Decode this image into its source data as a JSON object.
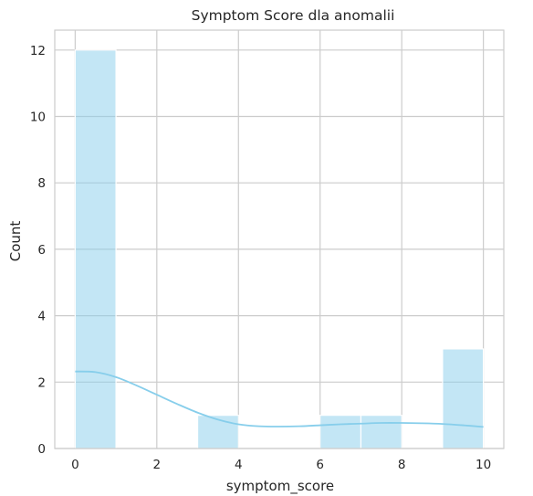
{
  "chart_data": {
    "type": "bar",
    "title": "Symptom Score dla anomalii",
    "xlabel": "symptom_score",
    "ylabel": "Count",
    "xlim": [
      -0.5,
      10.5
    ],
    "ylim": [
      0,
      12.6
    ],
    "xticks": [
      0,
      2,
      4,
      6,
      8,
      10
    ],
    "yticks": [
      0,
      2,
      4,
      6,
      8,
      10,
      12
    ],
    "grid": true,
    "bins": [
      {
        "start": 0,
        "end": 1,
        "count": 12
      },
      {
        "start": 1,
        "end": 2,
        "count": 0
      },
      {
        "start": 2,
        "end": 3,
        "count": 0
      },
      {
        "start": 3,
        "end": 4,
        "count": 1
      },
      {
        "start": 4,
        "end": 5,
        "count": 0
      },
      {
        "start": 5,
        "end": 6,
        "count": 0
      },
      {
        "start": 6,
        "end": 7,
        "count": 1
      },
      {
        "start": 7,
        "end": 8,
        "count": 1
      },
      {
        "start": 8,
        "end": 9,
        "count": 0
      },
      {
        "start": 9,
        "end": 10,
        "count": 3
      }
    ],
    "kde": {
      "x": [
        0,
        0.5,
        1,
        1.5,
        2,
        2.5,
        3,
        3.5,
        4,
        4.5,
        5,
        5.5,
        6,
        6.5,
        7,
        7.5,
        8,
        8.5,
        9,
        9.5,
        10
      ],
      "y": [
        2.32,
        2.3,
        2.15,
        1.9,
        1.62,
        1.34,
        1.08,
        0.87,
        0.73,
        0.67,
        0.66,
        0.67,
        0.7,
        0.73,
        0.75,
        0.77,
        0.77,
        0.76,
        0.74,
        0.7,
        0.65
      ]
    },
    "colors": {
      "bar_fill": "#87ceeb",
      "bar_fill_opacity": 0.5,
      "kde_line": "#87ceeb",
      "grid": "#cccccc",
      "spine": "#cccccc"
    }
  }
}
